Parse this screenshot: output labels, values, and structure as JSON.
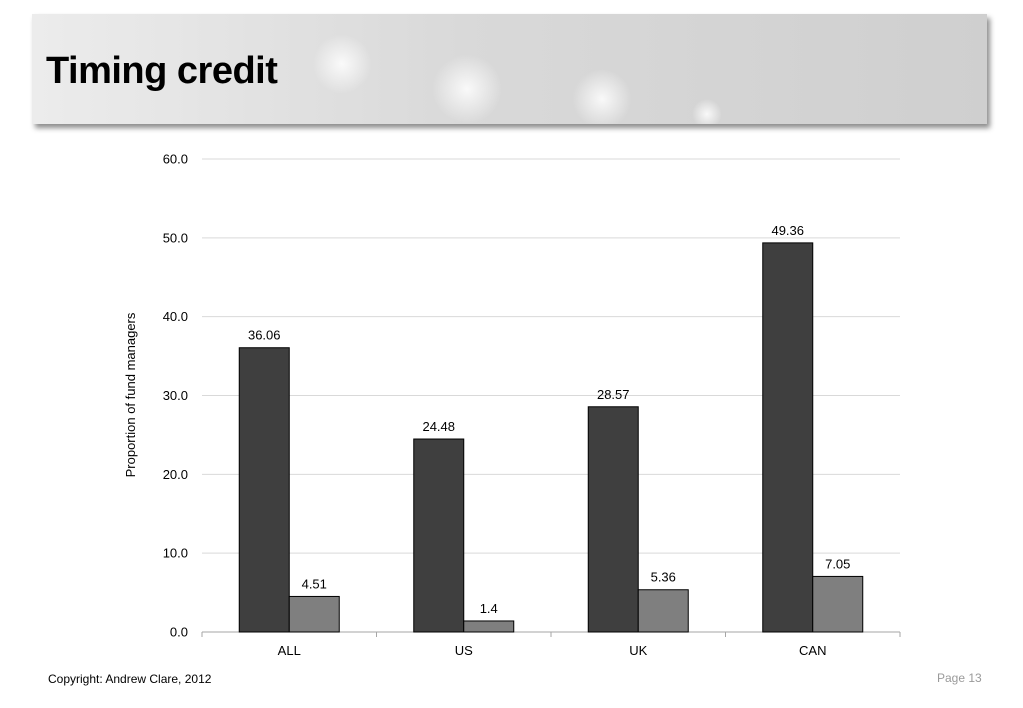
{
  "slide": {
    "title": "Timing credit",
    "footer_copyright": "Copyright: Andrew Clare, 2012",
    "page_label": "Page 13"
  },
  "chart_data": {
    "type": "bar",
    "categories": [
      "ALL",
      "US",
      "UK",
      "CAN"
    ],
    "series": [
      {
        "values": [
          36.06,
          24.48,
          28.57,
          49.36
        ],
        "color": "#3f3f3f"
      },
      {
        "values": [
          4.51,
          1.4,
          5.36,
          7.05
        ],
        "color": "#7f7f7f"
      }
    ],
    "ylabel": "Proportion of fund managers",
    "ylim": [
      0,
      60
    ],
    "yticks": [
      "0.0",
      "10.0",
      "20.0",
      "30.0",
      "40.0",
      "50.0",
      "60.0"
    ],
    "data_labels": [
      [
        "36.06",
        "24.48",
        "28.57",
        "49.36"
      ],
      [
        "4.51",
        "1.4",
        "5.36",
        "7.05"
      ]
    ],
    "grid": true,
    "legend": "none"
  }
}
